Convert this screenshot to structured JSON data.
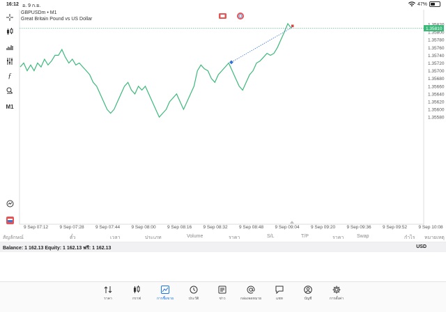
{
  "status": {
    "time": "16:12",
    "date": "อ. 9 ก.ย.",
    "battery": "47%"
  },
  "symbol": {
    "title": "GBPUSDm • M1",
    "description": "Great Britain Pound vs US Dollar"
  },
  "current_price": "1.35810",
  "chart_data": {
    "type": "line",
    "title": "GBPUSDm • M1",
    "xlabel": "",
    "ylabel": "",
    "ylim": [
      1.3557,
      1.3583
    ],
    "y_ticks": [
      "1.35820",
      "1.35800",
      "1.35780",
      "1.35760",
      "1.35740",
      "1.35720",
      "1.35700",
      "1.35680",
      "1.35660",
      "1.35640",
      "1.35620",
      "1.35600",
      "1.35580"
    ],
    "x_ticks": [
      "9 Sep 07:12",
      "9 Sep 07:28",
      "9 Sep 07:44",
      "9 Sep 08:00",
      "9 Sep 08:16",
      "9 Sep 08:32",
      "9 Sep 08:48",
      "9 Sep 09:04",
      "9 Sep 09:20",
      "9 Sep 09:36",
      "9 Sep 09:52",
      "9 Sep 10:08"
    ],
    "series": [
      {
        "values": [
          1.3571,
          1.3572,
          1.357,
          1.35715,
          1.357,
          1.3572,
          1.3571,
          1.3573,
          1.35715,
          1.35725,
          1.3574,
          1.3574,
          1.35755,
          1.35735,
          1.3572,
          1.3573,
          1.35715,
          1.3572,
          1.3571,
          1.357,
          1.3569,
          1.3567,
          1.3566,
          1.3564,
          1.3562,
          1.356,
          1.3559,
          1.356,
          1.3562,
          1.3564,
          1.3566,
          1.3567,
          1.3565,
          1.3564,
          1.3566,
          1.3565,
          1.3566,
          1.3564,
          1.3562,
          1.356,
          1.3558,
          1.3559,
          1.356,
          1.3562,
          1.3563,
          1.3564,
          1.3562,
          1.356,
          1.3562,
          1.3564,
          1.3566,
          1.357,
          1.35715,
          1.35705,
          1.357,
          1.3568,
          1.3567,
          1.3569,
          1.357,
          1.3571,
          1.3572,
          1.357,
          1.3568,
          1.3566,
          1.3565,
          1.3567,
          1.3569,
          1.357,
          1.3572,
          1.35725,
          1.35735,
          1.35745,
          1.3574,
          1.35745,
          1.3576,
          1.3578,
          1.358,
          1.35822,
          1.3581
        ]
      }
    ],
    "trade_line": {
      "open": 1.35722,
      "close": 1.35812
    },
    "grid": false
  },
  "columns": [
    "สัญลักษณ์",
    "ตั๋ว",
    "เวลา",
    "ประเภท",
    "Volume",
    "ราคา",
    "S/L",
    "T/P",
    "ราคา",
    "Swap",
    "กำไร",
    "หมายเหตุ"
  ],
  "account": {
    "summary": "Balance: 1 162.13 Equity: 1 162.13 ฟรี: 1 162.13",
    "currency": "USD"
  },
  "nav": [
    {
      "label": "ราคา",
      "icon": "quotes-icon"
    },
    {
      "label": "กราฟ",
      "icon": "chart-icon"
    },
    {
      "label": "การซื้อขาย",
      "icon": "trade-icon"
    },
    {
      "label": "ประวัติ",
      "icon": "history-icon"
    },
    {
      "label": "ข่าว",
      "icon": "news-icon"
    },
    {
      "label": "กล่องจดหมาย",
      "icon": "mail-icon"
    },
    {
      "label": "แชท",
      "icon": "chat-icon"
    },
    {
      "label": "บัญชี",
      "icon": "account-icon"
    },
    {
      "label": "การตั้งค่า",
      "icon": "settings-icon"
    }
  ]
}
